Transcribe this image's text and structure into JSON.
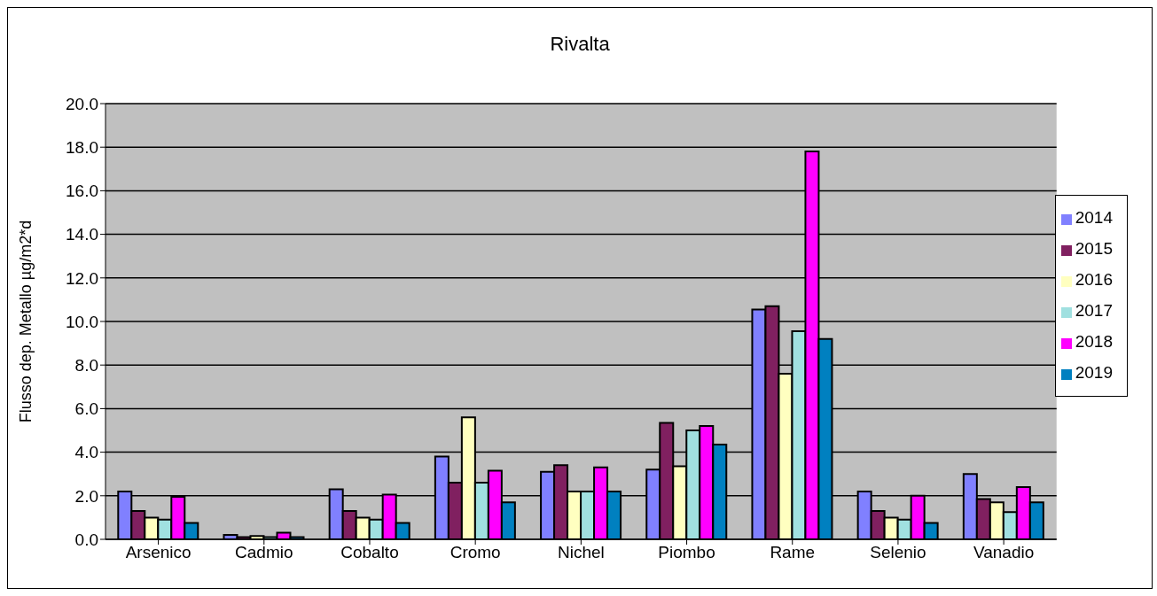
{
  "chart_data": {
    "type": "bar",
    "title": "Rivalta",
    "ylabel": "Flusso dep. Metallo µg/m2*d",
    "categories": [
      "Arsenico",
      "Cadmio",
      "Cobalto",
      "Cromo",
      "Nichel",
      "Piombo",
      "Rame",
      "Selenio",
      "Vanadio"
    ],
    "series": [
      {
        "name": "2014",
        "color": "#8080ff",
        "values": [
          2.2,
          0.2,
          2.3,
          3.8,
          3.1,
          3.2,
          10.55,
          2.2,
          3.0
        ]
      },
      {
        "name": "2015",
        "color": "#802060",
        "values": [
          1.3,
          0.1,
          1.3,
          2.6,
          3.4,
          5.35,
          10.7,
          1.3,
          1.85
        ]
      },
      {
        "name": "2016",
        "color": "#ffffc0",
        "values": [
          1.0,
          0.15,
          1.0,
          5.6,
          2.2,
          3.35,
          7.6,
          1.0,
          1.7
        ]
      },
      {
        "name": "2017",
        "color": "#a0e0e0",
        "values": [
          0.9,
          0.1,
          0.9,
          2.6,
          2.2,
          5.0,
          9.55,
          0.9,
          1.25
        ]
      },
      {
        "name": "2018",
        "color": "#ff00ff",
        "values": [
          1.95,
          0.3,
          2.05,
          3.15,
          3.3,
          5.2,
          17.8,
          2.0,
          2.4
        ]
      },
      {
        "name": "2019",
        "color": "#0080c0",
        "values": [
          0.75,
          0.1,
          0.75,
          1.7,
          2.2,
          4.35,
          9.2,
          0.75,
          1.7
        ]
      }
    ],
    "ylim": [
      0,
      20
    ],
    "yticks": [
      {
        "value": 0,
        "label": "0.0"
      },
      {
        "value": 2,
        "label": "2.0"
      },
      {
        "value": 4,
        "label": "4.0"
      },
      {
        "value": 6,
        "label": "6.0"
      },
      {
        "value": 8,
        "label": "8.0"
      },
      {
        "value": 10,
        "label": "10.0"
      },
      {
        "value": 12,
        "label": "12.0"
      },
      {
        "value": 14,
        "label": "14.0"
      },
      {
        "value": 16,
        "label": "16.0"
      },
      {
        "value": 18,
        "label": "18.0"
      },
      {
        "value": 20,
        "label": "20.0"
      }
    ],
    "grid": "y",
    "legend": "right"
  }
}
